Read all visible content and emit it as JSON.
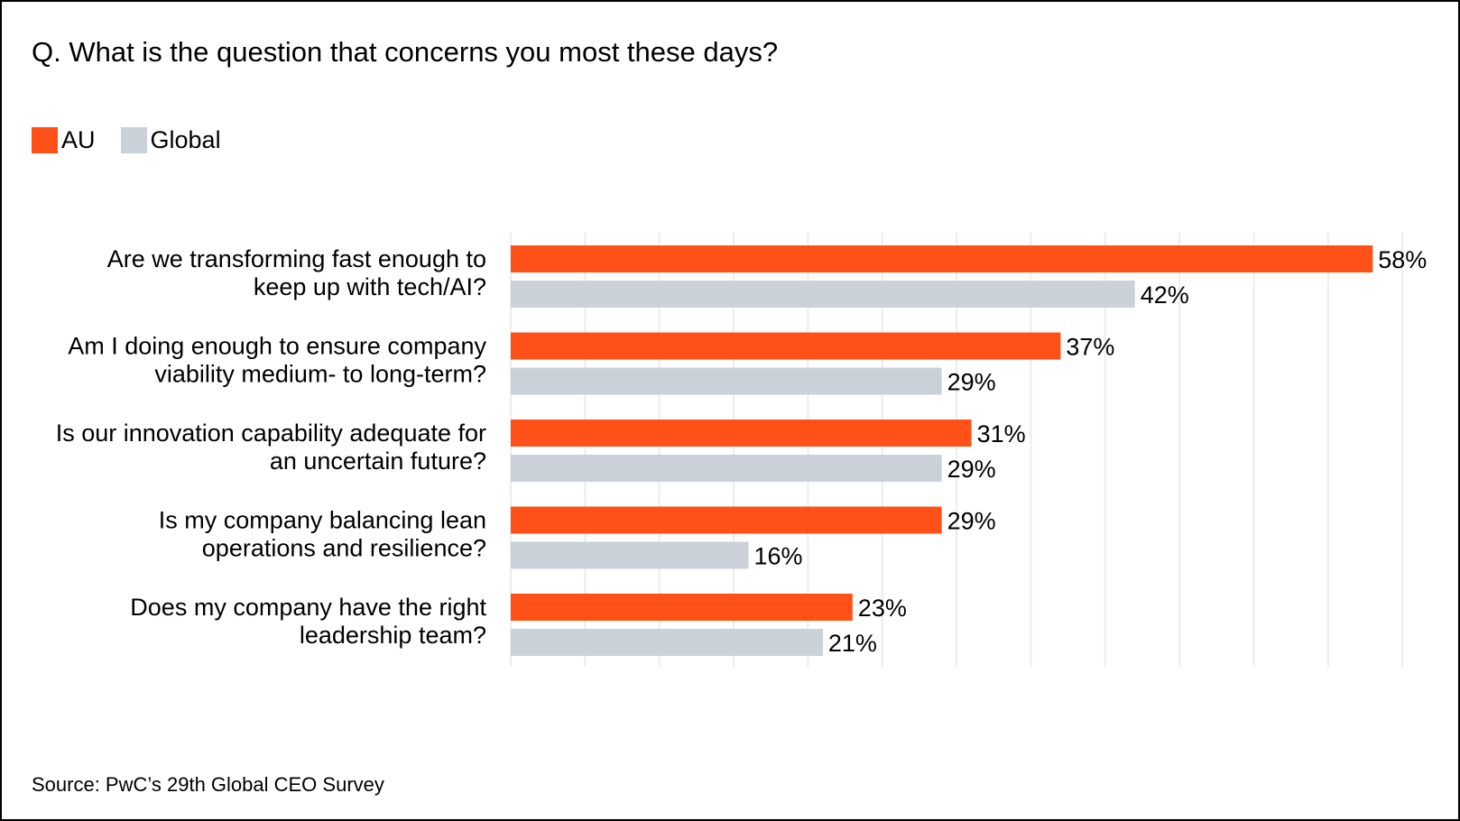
{
  "chart_data": {
    "type": "bar",
    "orientation": "horizontal",
    "title": "Q. What is the question that concerns you most these days?",
    "categories": [
      [
        "Are we transforming fast enough to",
        "keep up with tech/AI?"
      ],
      [
        "Am I doing enough to ensure company",
        "viability medium- to long-term?"
      ],
      [
        "Is our innovation capability adequate for",
        "an uncertain future?"
      ],
      [
        "Is my company balancing lean",
        "operations and resilience?"
      ],
      [
        "Does my company have the right",
        "leadership team?"
      ]
    ],
    "series": [
      {
        "name": "AU",
        "color": "#FE5017",
        "values": [
          58,
          37,
          31,
          29,
          23
        ],
        "labels": [
          "58%",
          "37%",
          "31%",
          "29%",
          "23%"
        ]
      },
      {
        "name": "Global",
        "color": "#CBD1D9",
        "values": [
          42,
          29,
          29,
          16,
          21
        ],
        "labels": [
          "42%",
          "29%",
          "29%",
          "16%",
          "21%"
        ]
      }
    ],
    "xlim": [
      0,
      60
    ],
    "grid_step": 5,
    "grid": true,
    "gridline_color": "#ECECEC",
    "legend_position": "top-left",
    "xlabel": "",
    "ylabel": "",
    "source": "Source: PwC’s 29th Global CEO Survey"
  }
}
